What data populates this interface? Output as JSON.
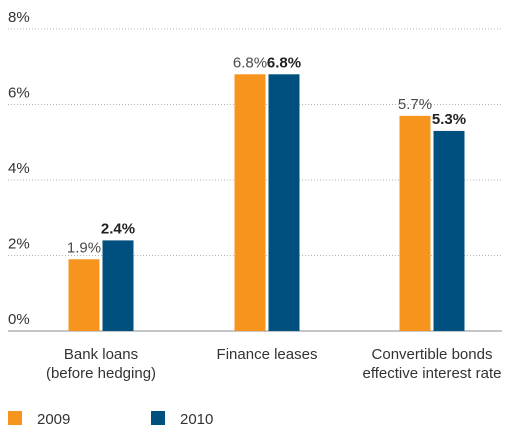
{
  "chart_data": {
    "type": "bar",
    "categories": [
      [
        "Bank loans",
        "(before hedging)"
      ],
      [
        "Finance leases"
      ],
      [
        "Convertible bonds",
        "effective interest rate"
      ]
    ],
    "series": [
      {
        "name": "2009",
        "values": [
          1.9,
          6.8,
          5.7
        ],
        "labels": [
          "1.9%",
          "6.8%",
          "5.7%"
        ],
        "color": "#f7941d"
      },
      {
        "name": "2010",
        "values": [
          2.4,
          6.8,
          5.3
        ],
        "labels": [
          "2.4%",
          "6.8%",
          "5.3%"
        ],
        "color": "#00507f"
      }
    ],
    "ylim": [
      0,
      8
    ],
    "yticks": [
      0,
      2,
      4,
      6,
      8
    ],
    "ytick_labels": [
      "0%",
      "2%",
      "4%",
      "6%",
      "8%"
    ],
    "grid": true,
    "legend_position": "bottom-left"
  }
}
